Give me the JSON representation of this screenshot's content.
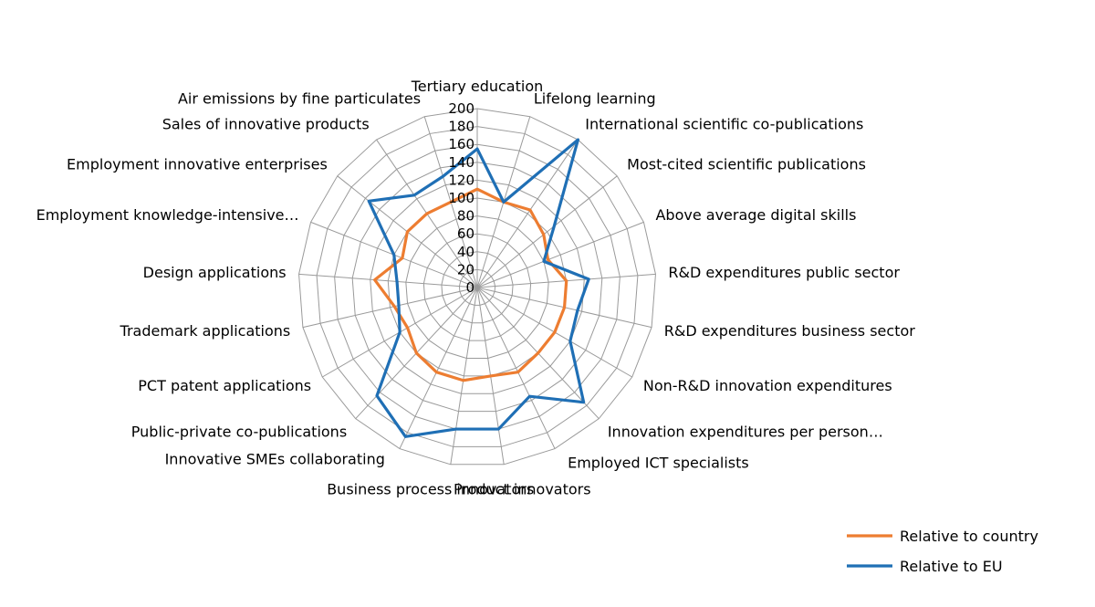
{
  "chart_data": {
    "type": "radar",
    "title": "",
    "categories": [
      "Tertiary education",
      "Lifelong learning",
      "International scientific co-publications",
      "Most-cited scientific publications",
      "Above average digital skills",
      "R&D expenditures public sector",
      "R&D expenditures business sector",
      "Non-R&D innovation expenditures",
      "Innovation expenditures per person…",
      "Employed ICT specialists",
      "Product innovators",
      "Business process innovators",
      "Innovative SMEs collaborating",
      "Public-private co-publications",
      "PCT patent applications",
      "Trademark applications",
      "Design applications",
      "Employment knowledge-intensive…",
      "Employment innovative enterprises",
      "Sales of innovative products",
      "Air emissions by fine particulates"
    ],
    "series": [
      {
        "name": "Relative to country",
        "color": "#ED7D31",
        "values": [
          110,
          100,
          105,
          95,
          85,
          100,
          100,
          100,
          100,
          105,
          100,
          105,
          105,
          100,
          90,
          95,
          115,
          90,
          100,
          100,
          100
        ]
      },
      {
        "name": "Relative to EU",
        "color": "#1F6FB5",
        "values": [
          155,
          100,
          200,
          110,
          80,
          125,
          115,
          120,
          175,
          135,
          160,
          160,
          185,
          165,
          100,
          90,
          90,
          100,
          155,
          125,
          130
        ]
      }
    ],
    "r_range": [
      0,
      200
    ],
    "ticks": [
      "0",
      "20",
      "40",
      "60",
      "80",
      "100",
      "120",
      "140",
      "160",
      "180",
      "200"
    ],
    "grid": true,
    "legend_position": "bottom-right"
  }
}
